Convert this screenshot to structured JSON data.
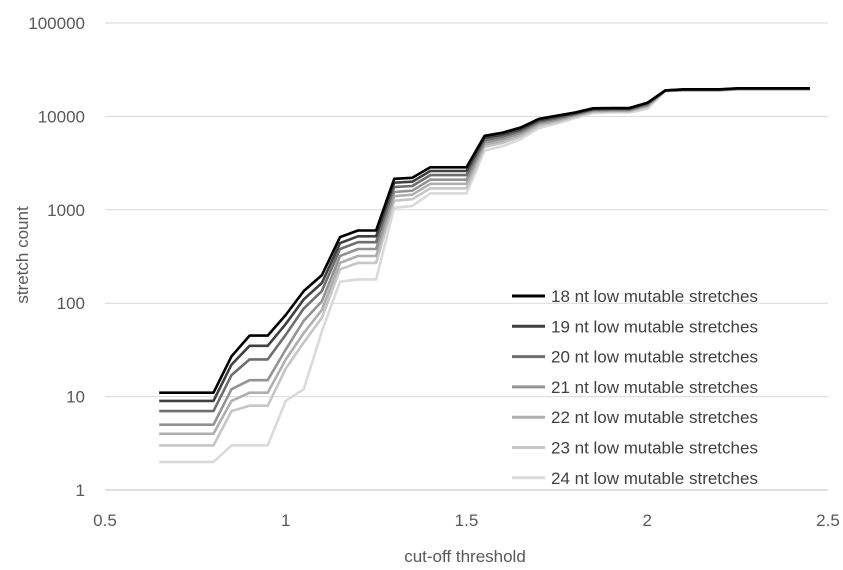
{
  "chart_data": {
    "type": "line",
    "title": "",
    "xlabel": "cut-off threshold",
    "ylabel": "stretch count",
    "xlim": [
      0.5,
      2.5
    ],
    "ylim": [
      1,
      100000
    ],
    "y_scale": "log",
    "grid": true,
    "legend_position": "bottom-right",
    "x_ticks": [
      "0.5",
      "1",
      "1.5",
      "2",
      "2.5"
    ],
    "y_ticks": [
      "1",
      "10",
      "100",
      "1000",
      "10000",
      "100000"
    ],
    "x": [
      0.65,
      0.7,
      0.75,
      0.8,
      0.85,
      0.9,
      0.95,
      1.0,
      1.05,
      1.1,
      1.15,
      1.2,
      1.25,
      1.3,
      1.35,
      1.4,
      1.45,
      1.5,
      1.55,
      1.6,
      1.65,
      1.7,
      1.75,
      1.8,
      1.85,
      1.9,
      1.95,
      2.0,
      2.05,
      2.1,
      2.15,
      2.2,
      2.25,
      2.3,
      2.35,
      2.4,
      2.45
    ],
    "series": [
      {
        "name": "18 nt low mutable stretches",
        "color": "#000000",
        "values": [
          11,
          11,
          11,
          11,
          27,
          45,
          45,
          75,
          135,
          200,
          510,
          600,
          600,
          2150,
          2200,
          2850,
          2850,
          2850,
          6200,
          6700,
          7600,
          9400,
          10200,
          11000,
          12200,
          12300,
          12300,
          14000,
          19000,
          19500,
          19500,
          19500,
          20000,
          20000,
          20000,
          20000,
          20000
        ]
      },
      {
        "name": "19 nt low mutable stretches",
        "color": "#404040",
        "values": [
          9,
          9,
          9,
          9,
          22,
          35,
          35,
          60,
          110,
          165,
          440,
          520,
          520,
          1950,
          2000,
          2600,
          2600,
          2600,
          5900,
          6400,
          7300,
          9100,
          9900,
          10800,
          12000,
          12100,
          12100,
          13800,
          19000,
          19400,
          19400,
          19400,
          19900,
          19900,
          19900,
          19900,
          19900
        ]
      },
      {
        "name": "20 nt low mutable stretches",
        "color": "#6e6e6e",
        "values": [
          7,
          7,
          7,
          7,
          17,
          25,
          25,
          46,
          88,
          135,
          380,
          450,
          450,
          1750,
          1800,
          2350,
          2350,
          2350,
          5600,
          6100,
          7000,
          8800,
          9600,
          10600,
          11800,
          11900,
          11900,
          13500,
          18900,
          19300,
          19300,
          19300,
          19800,
          19800,
          19800,
          19800,
          19800
        ]
      },
      {
        "name": "21 nt low mutable stretches",
        "color": "#939393",
        "values": [
          5,
          5,
          5,
          5,
          12,
          15,
          15,
          32,
          65,
          105,
          320,
          380,
          380,
          1550,
          1600,
          2100,
          2100,
          2100,
          5300,
          5800,
          6700,
          8500,
          9300,
          10400,
          11600,
          11700,
          11700,
          13200,
          18900,
          19200,
          19200,
          19200,
          19700,
          19700,
          19700,
          19700,
          19700
        ]
      },
      {
        "name": "22 nt low mutable stretches",
        "color": "#afafaf",
        "values": [
          4,
          4,
          4,
          4,
          9,
          11,
          11,
          25,
          48,
          85,
          270,
          320,
          320,
          1400,
          1450,
          1900,
          1900,
          1900,
          5000,
          5500,
          6400,
          8200,
          9000,
          10200,
          11400,
          11500,
          11500,
          13000,
          18800,
          19100,
          19100,
          19100,
          19600,
          19600,
          19600,
          19600,
          19600
        ]
      },
      {
        "name": "23 nt low mutable stretches",
        "color": "#c6c6c6",
        "values": [
          3,
          3,
          3,
          3,
          7,
          8,
          8,
          20,
          38,
          70,
          230,
          270,
          270,
          1250,
          1300,
          1700,
          1700,
          1700,
          4700,
          5200,
          6100,
          7900,
          8700,
          9900,
          11200,
          11300,
          11300,
          12600,
          18800,
          19000,
          19000,
          19000,
          19500,
          19500,
          19500,
          19500,
          19500
        ]
      },
      {
        "name": "24 nt low mutable stretches",
        "color": "#dadada",
        "values": [
          2,
          2,
          2,
          2,
          3,
          3,
          3,
          9,
          12,
          50,
          170,
          180,
          180,
          1050,
          1100,
          1500,
          1500,
          1500,
          4300,
          4800,
          5700,
          7500,
          8400,
          9600,
          10900,
          11000,
          11000,
          12000,
          18700,
          19000,
          19000,
          19000,
          19400,
          19400,
          19400,
          19400,
          19400
        ]
      }
    ]
  }
}
